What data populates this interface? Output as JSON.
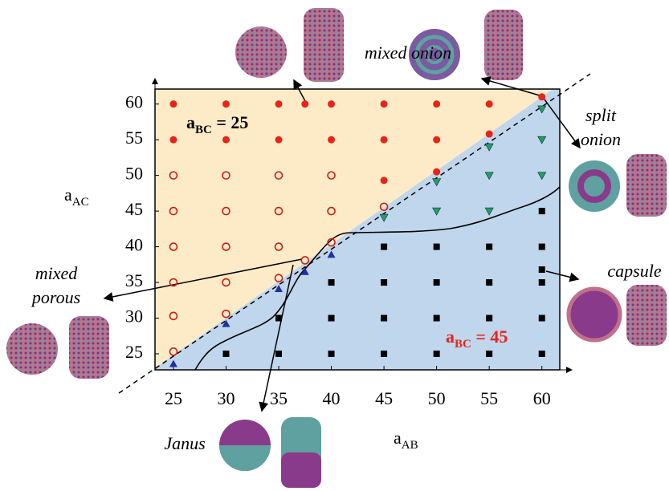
{
  "chart_data": {
    "type": "scatter",
    "xlim": [
      23.25,
      61.7
    ],
    "ylim": [
      22.75,
      62.1
    ],
    "xticks": [
      25,
      30,
      35,
      40,
      45,
      50,
      55,
      60
    ],
    "yticks": [
      25,
      30,
      35,
      40,
      45,
      50,
      55,
      60
    ],
    "x_label": {
      "base": "a",
      "sub": "AB"
    },
    "y_label": {
      "base": "a",
      "sub": "AC"
    },
    "series": [
      {
        "marker": "circle",
        "color": "#e8231a",
        "x": [
          25,
          30,
          35,
          37.5,
          40,
          45,
          50,
          55,
          60.0,
          25,
          30,
          35,
          40,
          45,
          50,
          55,
          45,
          50
        ],
        "y": [
          60,
          60,
          60,
          60,
          60,
          60,
          60,
          60,
          61,
          55,
          55,
          55,
          55,
          55,
          55,
          55.8,
          49.3,
          50.5
        ]
      },
      {
        "marker": "open-circle",
        "color": "#d01c10",
        "x": [
          25,
          30,
          35,
          40,
          25,
          30,
          35,
          40,
          45,
          25,
          30,
          35,
          40,
          25,
          30,
          35,
          37.5,
          25,
          30,
          25
        ],
        "y": [
          50,
          50,
          50,
          50,
          45,
          45,
          45,
          45,
          45.6,
          40,
          40,
          40,
          40.6,
          35,
          35,
          35.6,
          38.1,
          30.3,
          30.6,
          25.3
        ]
      },
      {
        "marker": "triangle-up",
        "color": "#1f2fa8",
        "x": [
          25,
          30,
          35,
          37.5,
          40
        ],
        "y": [
          23.6,
          29.2,
          34.1,
          36.5,
          38.9
        ]
      },
      {
        "marker": "triangle-down",
        "color": "#22a060",
        "x": [
          45,
          50,
          50,
          55,
          55,
          55,
          60,
          60,
          60
        ],
        "y": [
          44.1,
          49.1,
          45,
          54,
          50,
          45,
          59.3,
          55,
          50
        ]
      },
      {
        "marker": "square",
        "color": "#000000",
        "x": [
          30,
          35,
          40,
          45,
          50,
          55,
          60,
          35,
          40,
          45,
          50,
          55,
          60,
          40,
          45,
          50,
          55,
          60,
          45,
          50,
          55,
          60,
          60,
          60
        ],
        "y": [
          25,
          25,
          25,
          25,
          25,
          25,
          25,
          30,
          30,
          30,
          30,
          30,
          30,
          35,
          35,
          35,
          35,
          35,
          40,
          40,
          40,
          40,
          45,
          36.8
        ]
      }
    ],
    "annotations": [
      {
        "base": "a",
        "sub": "BC",
        "rest": " = 25",
        "color": "#000000"
      },
      {
        "base": "a",
        "sub": "BC",
        "rest": " = 45",
        "color": "#e8231a"
      }
    ],
    "phase_labels": [
      {
        "lines": [
          "mixed onion"
        ]
      },
      {
        "lines": [
          "split",
          "onion"
        ]
      },
      {
        "lines": [
          "capsule"
        ]
      },
      {
        "lines": [
          "mixed",
          "porous"
        ]
      },
      {
        "lines": [
          "Janus"
        ]
      }
    ]
  }
}
